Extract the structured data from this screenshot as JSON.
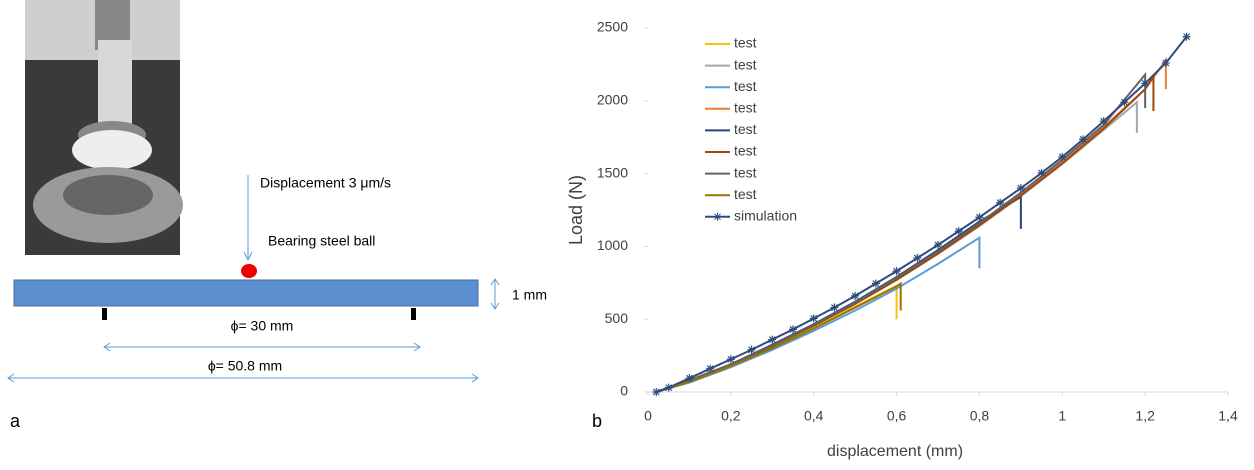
{
  "figure": {
    "panel_labels": [
      "a",
      "b"
    ],
    "diagram": {
      "displacement_label": "Displacement 3 μm/s",
      "ball_label": "Bearing steel ball",
      "thickness_label": "1 mm",
      "inner_diameter_label": "ϕ= 30 mm",
      "outer_diameter_label": "ϕ= 50.8 mm"
    }
  },
  "chart_data": {
    "type": "line",
    "x_label": "displacement (mm)",
    "y_label": "Load (N)",
    "xlim": [
      0,
      1.4
    ],
    "ylim": [
      0,
      2500
    ],
    "xticks": [
      0,
      {
        "value": 0.2,
        "label": "0,2"
      },
      {
        "value": 0.4,
        "label": "0,4"
      },
      {
        "value": 0.6,
        "label": "0,6"
      },
      {
        "value": 0.8,
        "label": "0,8"
      },
      1,
      {
        "value": 1.2,
        "label": "1,2"
      },
      {
        "value": 1.4,
        "label": "1,4"
      }
    ],
    "yticks": [
      0,
      500,
      1000,
      1500,
      2000,
      2500
    ],
    "grid": false,
    "legend": "upper left",
    "series": [
      {
        "name": "test",
        "color": "#FFC000",
        "x": [
          0.02,
          0.1,
          0.2,
          0.3,
          0.4,
          0.5,
          0.6,
          0.6
        ],
        "values": [
          0,
          70,
          180,
          305,
          440,
          585,
          730,
          500
        ]
      },
      {
        "name": "test",
        "color": "#A5A5A5",
        "x": [
          0.02,
          0.1,
          0.2,
          0.3,
          0.4,
          0.5,
          0.6,
          0.7,
          0.8,
          0.9,
          1.0,
          1.1,
          1.18,
          1.18
        ],
        "values": [
          0,
          75,
          185,
          315,
          455,
          605,
          770,
          950,
          1140,
          1345,
          1565,
          1800,
          1990,
          1780
        ]
      },
      {
        "name": "test",
        "color": "#5B9BD5",
        "x": [
          0.02,
          0.1,
          0.2,
          0.3,
          0.4,
          0.5,
          0.6,
          0.7,
          0.8,
          0.8
        ],
        "values": [
          0,
          65,
          170,
          290,
          420,
          560,
          710,
          880,
          1060,
          850
        ]
      },
      {
        "name": "test",
        "color": "#ED7D31",
        "x": [
          0.02,
          0.1,
          0.2,
          0.3,
          0.4,
          0.5,
          0.6,
          0.7,
          0.8,
          0.9,
          1.0,
          1.1,
          1.2,
          1.25,
          1.25
        ],
        "values": [
          0,
          75,
          185,
          315,
          455,
          610,
          775,
          955,
          1150,
          1360,
          1580,
          1820,
          2080,
          2280,
          2080
        ]
      },
      {
        "name": "test",
        "color": "#264478",
        "x": [
          0.02,
          0.1,
          0.2,
          0.3,
          0.4,
          0.5,
          0.6,
          0.7,
          0.8,
          0.9,
          0.9
        ],
        "values": [
          0,
          80,
          190,
          325,
          465,
          620,
          790,
          975,
          1170,
          1340,
          1120
        ]
      },
      {
        "name": "test",
        "color": "#9E480E",
        "x": [
          0.02,
          0.1,
          0.2,
          0.3,
          0.4,
          0.5,
          0.6,
          0.7,
          0.8,
          0.9,
          1.0,
          1.1,
          1.2,
          1.22,
          1.22
        ],
        "values": [
          0,
          75,
          185,
          315,
          455,
          605,
          770,
          950,
          1145,
          1350,
          1570,
          1810,
          2080,
          2170,
          1930
        ]
      },
      {
        "name": "test",
        "color": "#636363",
        "x": [
          0.02,
          0.1,
          0.2,
          0.3,
          0.4,
          0.5,
          0.6,
          0.7,
          0.8,
          0.9,
          1.0,
          1.1,
          1.2,
          1.2
        ],
        "values": [
          0,
          78,
          190,
          320,
          460,
          615,
          785,
          965,
          1160,
          1370,
          1595,
          1835,
          2180,
          1950
        ]
      },
      {
        "name": "test",
        "color": "#997300",
        "x": [
          0.02,
          0.1,
          0.2,
          0.3,
          0.4,
          0.5,
          0.6,
          0.61,
          0.61
        ],
        "values": [
          0,
          70,
          178,
          300,
          435,
          580,
          725,
          745,
          560
        ]
      },
      {
        "name": "simulation",
        "color": "#2F4B7C",
        "marker": "star",
        "x": [
          0.02,
          0.05,
          0.1,
          0.15,
          0.2,
          0.25,
          0.3,
          0.35,
          0.4,
          0.45,
          0.5,
          0.55,
          0.6,
          0.65,
          0.7,
          0.75,
          0.8,
          0.85,
          0.9,
          0.95,
          1.0,
          1.05,
          1.1,
          1.15,
          1.2,
          1.25,
          1.3
        ],
        "values": [
          0,
          30,
          95,
          160,
          225,
          290,
          360,
          430,
          505,
          580,
          660,
          745,
          830,
          920,
          1010,
          1105,
          1200,
          1300,
          1400,
          1505,
          1615,
          1735,
          1860,
          1990,
          2120,
          2260,
          2440
        ]
      }
    ]
  }
}
